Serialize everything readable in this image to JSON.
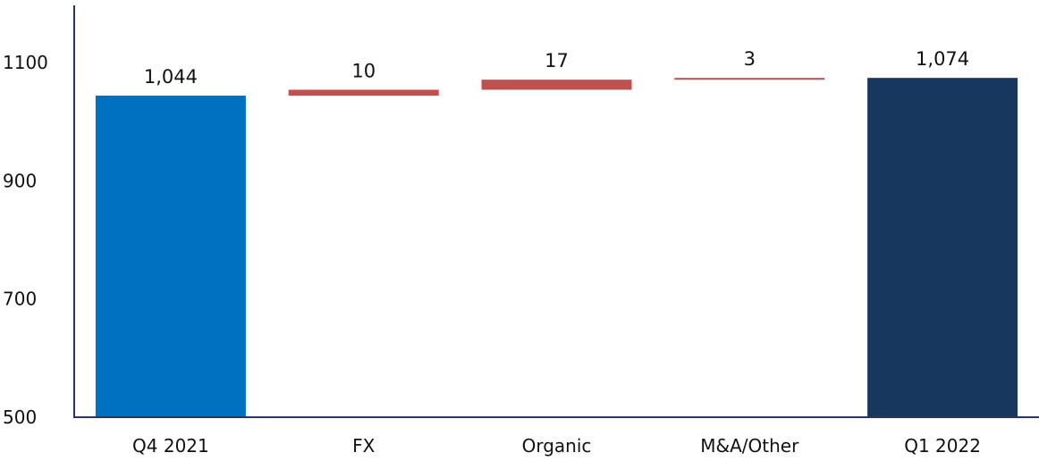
{
  "chart_data": {
    "type": "bar",
    "subtype": "waterfall",
    "categories": [
      "Q4 2021",
      "FX",
      "Organic",
      "M&A/Other",
      "Q1 2022"
    ],
    "values": [
      1044,
      10,
      17,
      3,
      1074
    ],
    "data_labels": [
      "1,044",
      "10",
      "17",
      "3",
      "1,074"
    ],
    "kinds": [
      "total",
      "delta",
      "delta",
      "delta",
      "total"
    ],
    "yticks": [
      500,
      700,
      900,
      1100
    ],
    "ytick_labels": [
      "500",
      "700",
      "900",
      "1100"
    ],
    "ylim": [
      500,
      1160
    ],
    "title": "",
    "xlabel": "",
    "ylabel": "",
    "grid": false,
    "legend": "none",
    "colors": {
      "start_total": "#0070C0",
      "end_total": "#17375E",
      "delta": "#C0504D",
      "axis": "#1F3864"
    }
  }
}
